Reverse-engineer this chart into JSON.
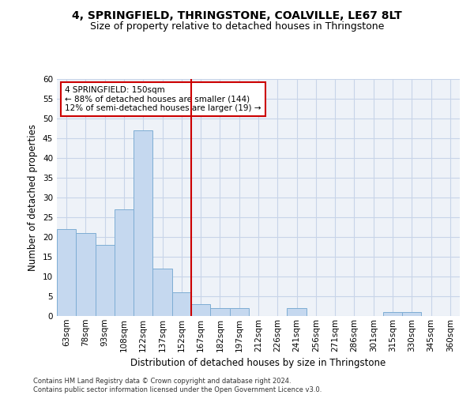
{
  "title": "4, SPRINGFIELD, THRINGSTONE, COALVILLE, LE67 8LT",
  "subtitle": "Size of property relative to detached houses in Thringstone",
  "xlabel": "Distribution of detached houses by size in Thringstone",
  "ylabel": "Number of detached properties",
  "footer_line1": "Contains HM Land Registry data © Crown copyright and database right 2024.",
  "footer_line2": "Contains public sector information licensed under the Open Government Licence v3.0.",
  "categories": [
    "63sqm",
    "78sqm",
    "93sqm",
    "108sqm",
    "122sqm",
    "137sqm",
    "152sqm",
    "167sqm",
    "182sqm",
    "197sqm",
    "212sqm",
    "226sqm",
    "241sqm",
    "256sqm",
    "271sqm",
    "286sqm",
    "301sqm",
    "315sqm",
    "330sqm",
    "345sqm",
    "360sqm"
  ],
  "values": [
    22,
    21,
    18,
    27,
    47,
    12,
    6,
    3,
    2,
    2,
    0,
    0,
    2,
    0,
    0,
    0,
    0,
    1,
    1,
    0,
    0
  ],
  "bar_color": "#c5d8ef",
  "bar_edge_color": "#7eadd4",
  "grid_color": "#c8d4e8",
  "red_line_index": 6,
  "red_line_color": "#cc0000",
  "annotation_text": "4 SPRINGFIELD: 150sqm\n← 88% of detached houses are smaller (144)\n12% of semi-detached houses are larger (19) →",
  "annotation_box_facecolor": "#ffffff",
  "annotation_box_edgecolor": "#cc0000",
  "ylim": [
    0,
    60
  ],
  "yticks": [
    0,
    5,
    10,
    15,
    20,
    25,
    30,
    35,
    40,
    45,
    50,
    55,
    60
  ],
  "background_color": "#ffffff",
  "plot_bg_color": "#eef2f8",
  "title_fontsize": 10,
  "subtitle_fontsize": 9,
  "axis_label_fontsize": 8.5,
  "tick_fontsize": 7.5,
  "annotation_fontsize": 7.5
}
